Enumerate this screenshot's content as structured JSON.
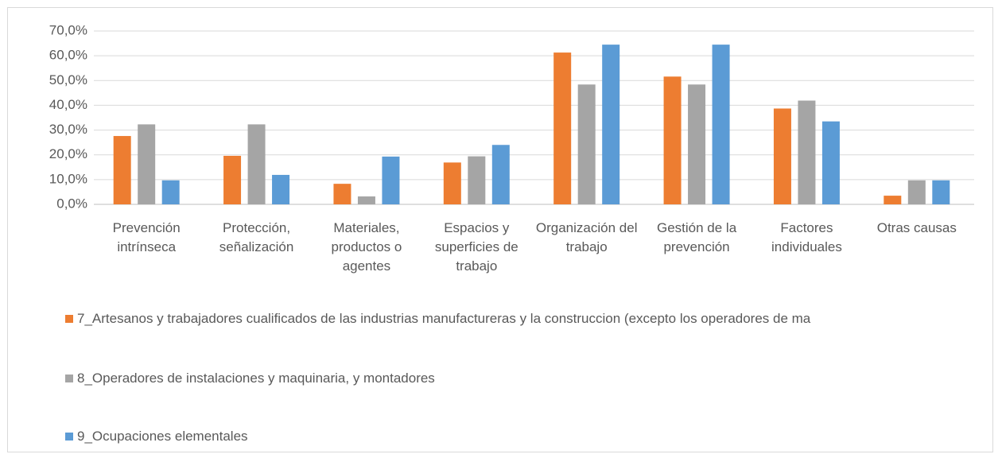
{
  "chart_data": {
    "type": "bar",
    "categories": [
      "Prevención intrínseca",
      "Protección, señalización",
      "Materiales, productos o agentes",
      "Espacios y superficies de trabajo",
      "Organización del trabajo",
      "Gestión de la prevención",
      "Factores individuales",
      "Otras causas"
    ],
    "series": [
      {
        "name": "7_Artesanos y trabajadores cualificados de las industrias manufactureras y la construccion (excepto los operadores de ma",
        "color": "#ed7d31",
        "values": [
          27.6,
          19.6,
          8.3,
          16.9,
          61.3,
          51.6,
          38.7,
          3.5
        ]
      },
      {
        "name": "8_Operadores de instalaciones y maquinaria, y montadores",
        "color": "#a5a5a5",
        "values": [
          32.3,
          32.3,
          3.2,
          19.4,
          48.4,
          48.4,
          41.9,
          9.7
        ]
      },
      {
        "name": "9_Ocupaciones elementales",
        "color": "#5b9bd5",
        "values": [
          9.7,
          11.9,
          19.3,
          24.0,
          64.5,
          64.5,
          33.5,
          9.7
        ]
      }
    ],
    "ylim": [
      0,
      70
    ],
    "yticks": [
      {
        "value": 0,
        "label": "0,0%"
      },
      {
        "value": 10,
        "label": "10,0%"
      },
      {
        "value": 20,
        "label": "20,0%"
      },
      {
        "value": 30,
        "label": "30,0%"
      },
      {
        "value": 40,
        "label": "40,0%"
      },
      {
        "value": 50,
        "label": "50,0%"
      },
      {
        "value": 60,
        "label": "60,0%"
      },
      {
        "value": 70,
        "label": "70,0%"
      }
    ],
    "grid": true,
    "legend": "bottom"
  }
}
